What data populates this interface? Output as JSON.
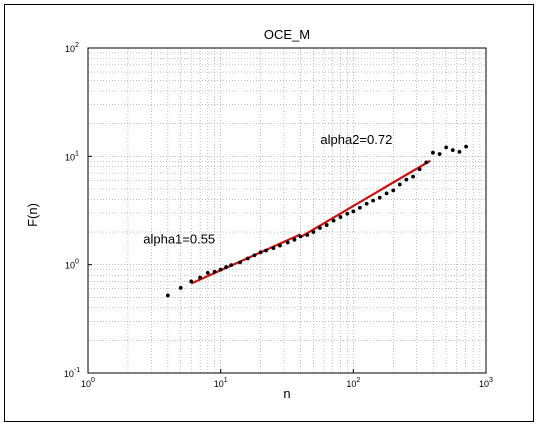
{
  "chart_data": {
    "type": "scatter",
    "title": "OCE_M",
    "xlabel": "n",
    "ylabel": "F(n)",
    "xscale": "log",
    "yscale": "log",
    "xlim": [
      1,
      1000
    ],
    "ylim": [
      0.1,
      100
    ],
    "grid": true,
    "x_ticks": [
      {
        "base": "10",
        "exp": "0"
      },
      {
        "base": "10",
        "exp": "1"
      },
      {
        "base": "10",
        "exp": "2"
      },
      {
        "base": "10",
        "exp": "3"
      }
    ],
    "y_ticks": [
      {
        "base": "10",
        "exp": "-1"
      },
      {
        "base": "10",
        "exp": "0"
      },
      {
        "base": "10",
        "exp": "1"
      },
      {
        "base": "10",
        "exp": "2"
      }
    ],
    "points": [
      [
        4,
        0.52
      ],
      [
        5,
        0.61
      ],
      [
        6,
        0.7
      ],
      [
        7,
        0.76
      ],
      [
        8,
        0.84
      ],
      [
        9,
        0.86
      ],
      [
        10,
        0.9
      ],
      [
        11,
        0.95
      ],
      [
        12,
        0.99
      ],
      [
        14,
        1.05
      ],
      [
        16,
        1.14
      ],
      [
        18,
        1.22
      ],
      [
        20,
        1.3
      ],
      [
        22,
        1.35
      ],
      [
        25,
        1.42
      ],
      [
        28,
        1.5
      ],
      [
        32,
        1.6
      ],
      [
        36,
        1.7
      ],
      [
        40,
        1.82
      ],
      [
        45,
        1.88
      ],
      [
        50,
        2.0
      ],
      [
        56,
        2.18
      ],
      [
        63,
        2.32
      ],
      [
        71,
        2.55
      ],
      [
        80,
        2.75
      ],
      [
        90,
        2.95
      ],
      [
        100,
        3.1
      ],
      [
        112,
        3.35
      ],
      [
        126,
        3.65
      ],
      [
        141,
        3.9
      ],
      [
        158,
        4.15
      ],
      [
        178,
        4.55
      ],
      [
        200,
        4.85
      ],
      [
        224,
        5.5
      ],
      [
        251,
        6.1
      ],
      [
        282,
        6.5
      ],
      [
        316,
        7.6
      ],
      [
        355,
        8.8
      ],
      [
        398,
        10.8
      ],
      [
        447,
        10.5
      ],
      [
        501,
        12.1
      ],
      [
        562,
        11.4
      ],
      [
        631,
        11.0
      ],
      [
        708,
        12.3
      ]
    ],
    "fits": [
      {
        "label": "alpha1=0.55",
        "slope": 0.55,
        "x_range": [
          6,
          40
        ],
        "y_start": 0.67,
        "color": "#cc1111"
      },
      {
        "label": "alpha2=0.72",
        "slope": 0.72,
        "x_range": [
          40,
          380
        ],
        "y_start": 1.8,
        "color": "#cc1111"
      }
    ],
    "point_color": "#000000",
    "grid_color": "#999999"
  }
}
